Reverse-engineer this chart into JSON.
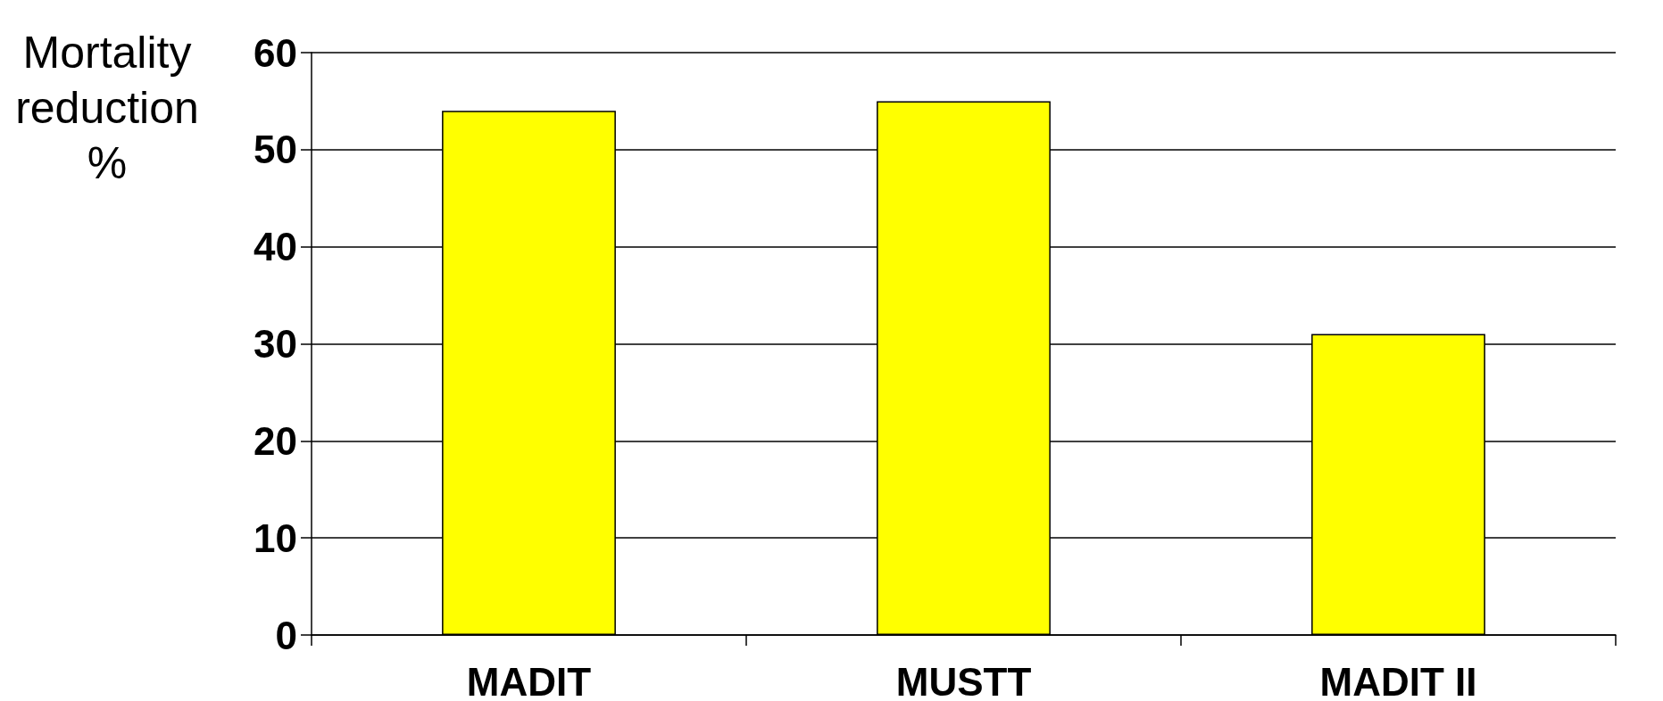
{
  "chart_data": {
    "type": "bar",
    "ylabel": "Mortality reduction %",
    "categories": [
      "MADIT",
      "MUSTT",
      "MADIT II"
    ],
    "values": [
      54,
      55,
      31
    ],
    "color": "#ffff00",
    "ylim": [
      0,
      60
    ],
    "yticks": [
      0,
      10,
      20,
      30,
      40,
      50,
      60
    ],
    "grid": "y"
  }
}
